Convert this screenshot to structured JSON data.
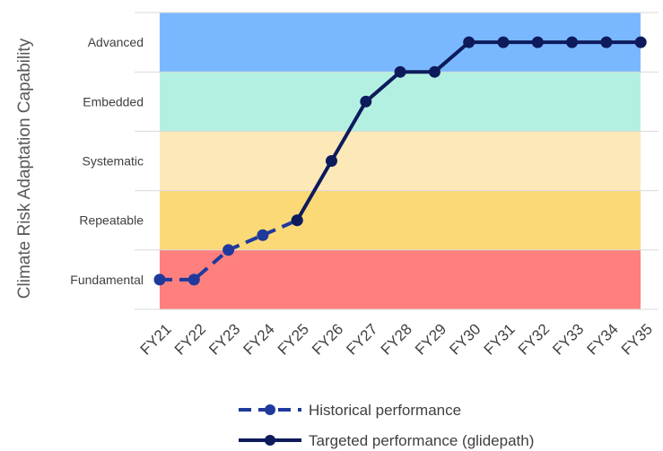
{
  "chart_data": {
    "type": "line",
    "title": "",
    "xlabel": "",
    "ylabel": "Climate Risk Adaptation Capability",
    "categories": [
      "FY21",
      "FY22",
      "FY23",
      "FY24",
      "FY25",
      "FY26",
      "FY27",
      "FY28",
      "FY29",
      "FY30",
      "FY31",
      "FY32",
      "FY33",
      "FY34",
      "FY35"
    ],
    "ylim": [
      0,
      5
    ],
    "bands": [
      {
        "label": "Fundamental",
        "from": 0,
        "to": 1,
        "color": "#ff7f7f"
      },
      {
        "label": "Repeatable",
        "from": 1,
        "to": 2,
        "color": "#fcd977"
      },
      {
        "label": "Systematic",
        "from": 2,
        "to": 3,
        "color": "#fde9b8"
      },
      {
        "label": "Embedded",
        "from": 3,
        "to": 4,
        "color": "#b3f0e1"
      },
      {
        "label": "Advanced",
        "from": 4,
        "to": 5,
        "color": "#79b8ff"
      }
    ],
    "series": [
      {
        "name": "Historical performance",
        "style": "dashed",
        "color": "#1f3a9c",
        "x": [
          "FY21",
          "FY22",
          "FY23",
          "FY24",
          "FY25"
        ],
        "values": [
          0.5,
          0.5,
          1.0,
          1.25,
          1.5
        ]
      },
      {
        "name": "Targeted performance (glidepath)",
        "style": "solid",
        "color": "#0d1a5c",
        "x": [
          "FY25",
          "FY26",
          "FY27",
          "FY28",
          "FY29",
          "FY30",
          "FY31",
          "FY32",
          "FY33",
          "FY34",
          "FY35"
        ],
        "values": [
          1.5,
          2.5,
          3.5,
          4.0,
          4.0,
          4.5,
          4.5,
          4.5,
          4.5,
          4.5,
          4.5
        ]
      }
    ],
    "grid": true,
    "legend": "bottom"
  }
}
